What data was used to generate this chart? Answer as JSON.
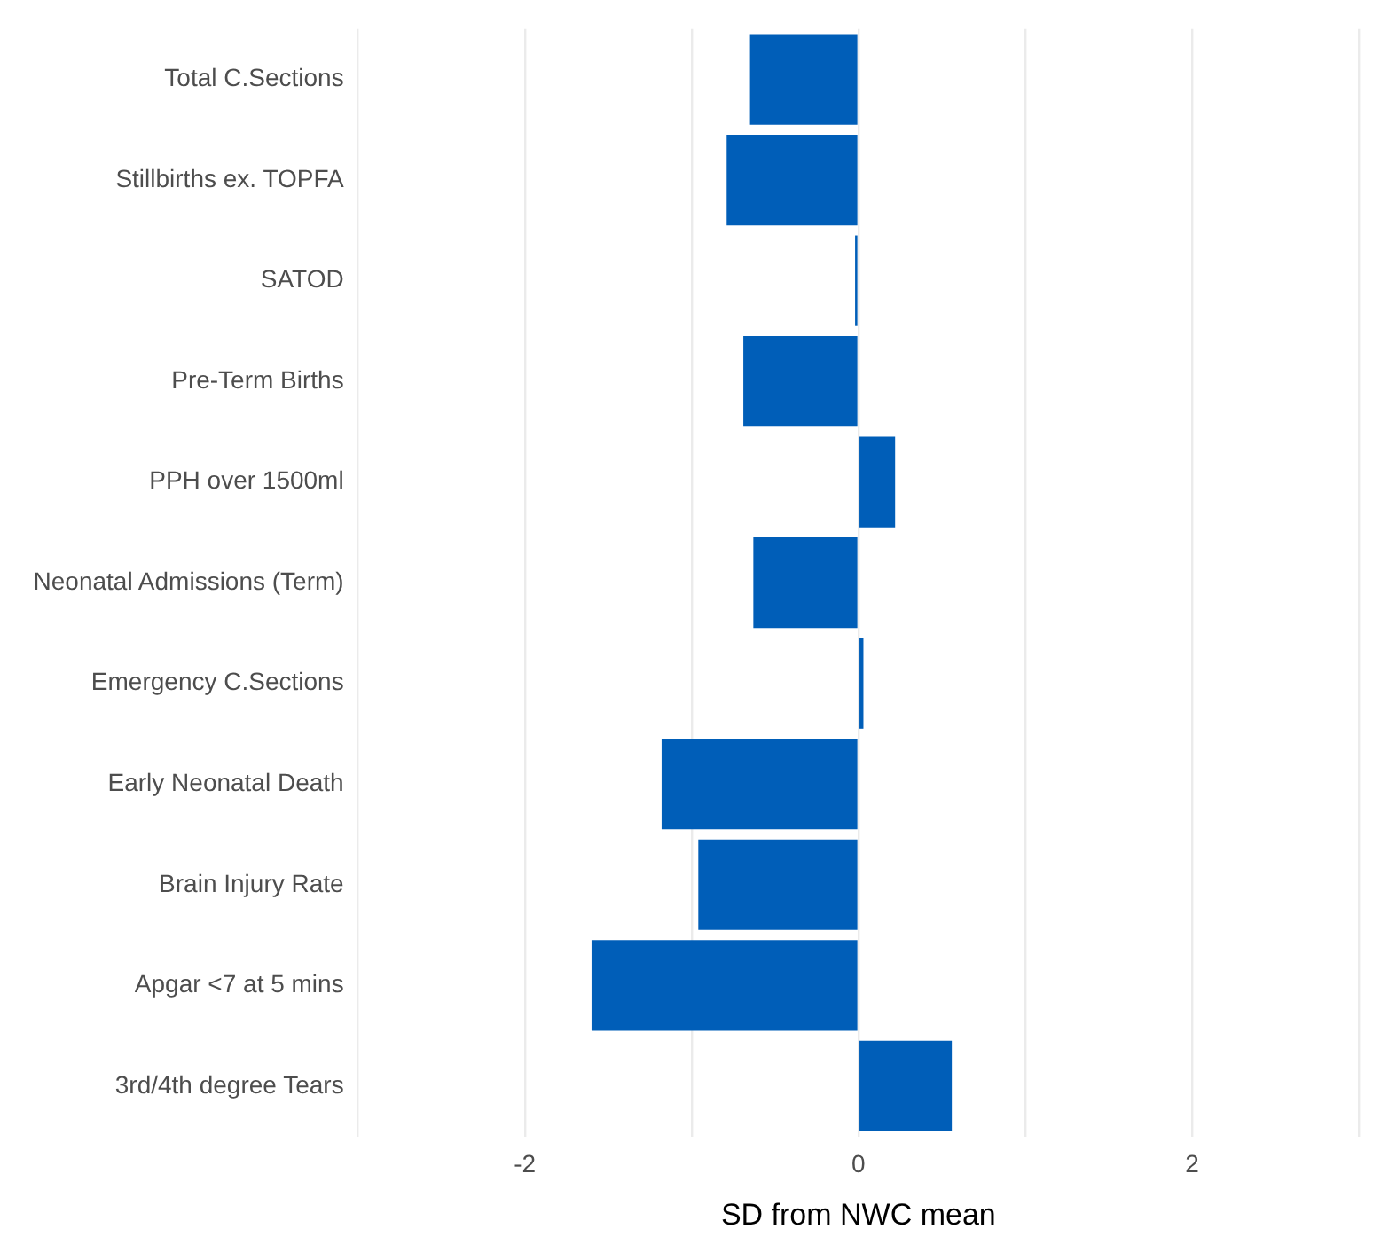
{
  "chart_data": {
    "type": "bar",
    "orientation": "horizontal",
    "xlabel": "SD from NWC mean",
    "categories": [
      "Total C.Sections",
      "Stillbirths ex. TOPFA",
      "SATOD",
      "Pre-Term Births",
      "PPH over 1500ml",
      "Neonatal Admissions (Term)",
      "Emergency C.Sections",
      "Early Neonatal Death",
      "Brain Injury Rate",
      "Apgar <7 at 5 mins",
      "3rd/4th degree Tears"
    ],
    "values": [
      -0.65,
      -0.79,
      -0.02,
      -0.69,
      0.22,
      -0.63,
      0.03,
      -1.18,
      -0.96,
      -1.6,
      0.56
    ],
    "color": "#005eb8",
    "xlim": [
      -3,
      3
    ],
    "xticks": [
      {
        "value": -3,
        "label": null
      },
      -2,
      {
        "value": -1,
        "label": null
      },
      0,
      {
        "value": 1,
        "label": null
      },
      2,
      {
        "value": 3,
        "label": null
      }
    ],
    "grid": "x"
  }
}
